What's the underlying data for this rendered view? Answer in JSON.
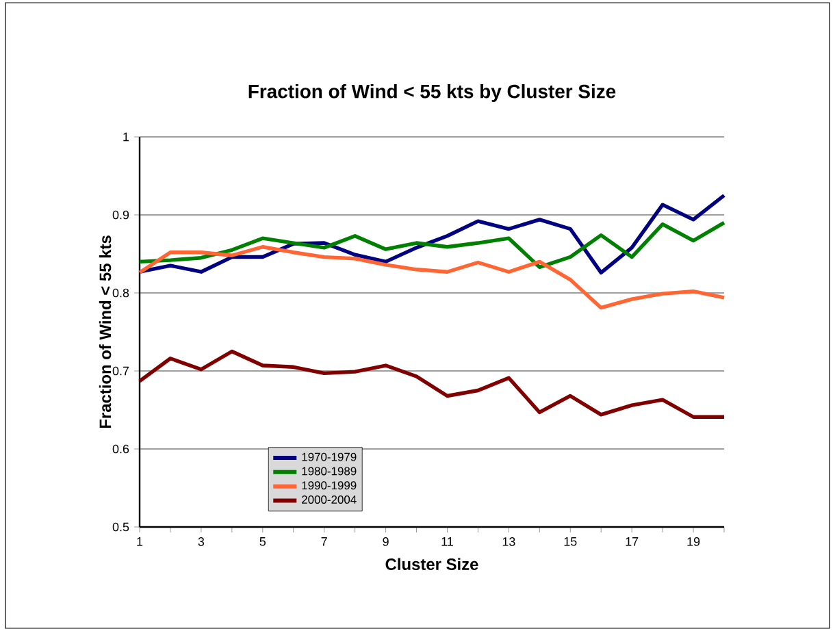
{
  "chart_data": {
    "type": "line",
    "title": "Fraction of Wind < 55 kts by Cluster Size",
    "xlabel": "Cluster Size",
    "ylabel": "Fraction of Wind < 55 kts",
    "x": [
      1,
      2,
      3,
      4,
      5,
      6,
      7,
      8,
      9,
      10,
      11,
      12,
      13,
      14,
      15,
      16,
      17,
      18,
      19,
      20
    ],
    "series": [
      {
        "name": "1970-1979",
        "color": "#000080",
        "values": [
          0.827,
          0.835,
          0.827,
          0.846,
          0.846,
          0.863,
          0.864,
          0.849,
          0.84,
          0.858,
          0.873,
          0.892,
          0.882,
          0.894,
          0.882,
          0.826,
          0.858,
          0.913,
          0.894,
          0.925
        ]
      },
      {
        "name": "1980-1989",
        "color": "#008000",
        "values": [
          0.84,
          0.842,
          0.845,
          0.855,
          0.87,
          0.864,
          0.858,
          0.873,
          0.856,
          0.864,
          0.859,
          0.864,
          0.87,
          0.833,
          0.846,
          0.874,
          0.846,
          0.888,
          0.867,
          0.89
        ]
      },
      {
        "name": "1990-1999",
        "color": "#ff6633",
        "values": [
          0.826,
          0.852,
          0.852,
          0.848,
          0.859,
          0.852,
          0.846,
          0.844,
          0.836,
          0.83,
          0.827,
          0.839,
          0.827,
          0.84,
          0.817,
          0.781,
          0.792,
          0.799,
          0.802,
          0.794
        ]
      },
      {
        "name": "2000-2004",
        "color": "#800000",
        "values": [
          0.687,
          0.716,
          0.702,
          0.725,
          0.707,
          0.705,
          0.697,
          0.699,
          0.707,
          0.693,
          0.668,
          0.675,
          0.691,
          0.647,
          0.668,
          0.644,
          0.656,
          0.663,
          0.641,
          0.641
        ]
      }
    ],
    "xlim": [
      1,
      20
    ],
    "xticks": [
      1,
      {
        "value": 2,
        "label": null
      },
      3,
      {
        "value": 4,
        "label": null
      },
      5,
      {
        "value": 6,
        "label": null
      },
      7,
      {
        "value": 8,
        "label": null
      },
      9,
      {
        "value": 10,
        "label": null
      },
      11,
      {
        "value": 12,
        "label": null
      },
      13,
      {
        "value": 14,
        "label": null
      },
      15,
      {
        "value": 16,
        "label": null
      },
      17,
      {
        "value": 18,
        "label": null
      },
      19,
      {
        "value": 20,
        "label": null
      }
    ],
    "ylim": [
      0.5,
      1
    ],
    "yticks": [
      0.5,
      0.6,
      0.7,
      0.8,
      0.9,
      1
    ],
    "grid": "y",
    "legend": "bottom left",
    "marker": "none",
    "line_style": "solid"
  }
}
